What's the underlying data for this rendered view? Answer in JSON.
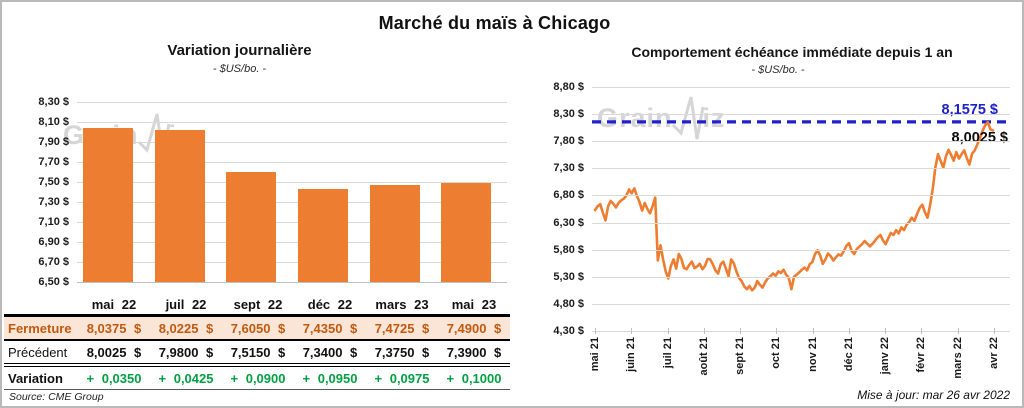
{
  "title": "Marché du maïs à Chicago",
  "watermark": {
    "part1": "Grain",
    "part2": "iz"
  },
  "source_note": "Source: CME Group",
  "updated_note": "Mise à jour: mar 26 avr 2022",
  "colors": {
    "orange": "#ED7D31",
    "peach": "#FBE5D6",
    "brown": "#C05A11",
    "green": "#00A142",
    "blue": "#2121C8",
    "grid": "#D9D9D9"
  },
  "chart_data": [
    {
      "type": "bar",
      "title": "Variation  journalière",
      "subtitle": "- $US/bo. -",
      "categories": [
        "mai 22",
        "juil 22",
        "sept 22",
        "déc 22",
        "mars 23",
        "mai 23"
      ],
      "values": [
        8.0375,
        8.0225,
        7.605,
        7.435,
        7.4725,
        7.49
      ],
      "ylim": [
        6.5,
        8.3
      ],
      "ytick_step": 0.2,
      "ytick_labels": [
        "8,30 $",
        "8,10 $",
        "7,90 $",
        "7,70 $",
        "7,50 $",
        "7,30 $",
        "7,10 $",
        "6,90 $",
        "6,70 $",
        "6,50 $"
      ],
      "bar_color": "#ED7D31",
      "grid": "horizontal"
    },
    {
      "type": "line",
      "title": "Comportement  échéance  immédiate  depuis 1 an",
      "subtitle": "- $US/bo. -",
      "x_labels": [
        "mai 21",
        "juin 21",
        "juil 21",
        "août 21",
        "sept 21",
        "oct 21",
        "nov 21",
        "déc 21",
        "janv 22",
        "févr 22",
        "mars 22",
        "avr 22"
      ],
      "ylim": [
        4.3,
        8.8
      ],
      "ytick_step": 0.5,
      "ytick_labels": [
        "8,80 $",
        "8,30 $",
        "7,80 $",
        "7,30 $",
        "6,80 $",
        "6,30 $",
        "5,80 $",
        "5,30 $",
        "4,80 $",
        "4,30 $"
      ],
      "line_color": "#ED7D31",
      "grid": "horizontal",
      "reference_line": {
        "value": 8.1575,
        "label": "8,1575 $",
        "style": "dashed",
        "color": "#2121C8"
      },
      "last_label": {
        "value": 8.0025,
        "label": "8,0025 $"
      },
      "series": [
        {
          "name": "échéance immédiate",
          "values": [
            6.53,
            6.6,
            6.64,
            6.48,
            6.34,
            6.6,
            6.7,
            6.65,
            6.58,
            6.66,
            6.71,
            6.74,
            6.8,
            6.91,
            6.84,
            6.93,
            6.79,
            6.68,
            6.52,
            6.66,
            6.55,
            6.47,
            6.6,
            6.76,
            5.6,
            5.88,
            5.62,
            5.4,
            5.27,
            5.5,
            5.62,
            5.45,
            5.72,
            5.63,
            5.46,
            5.44,
            5.52,
            5.58,
            5.46,
            5.49,
            5.54,
            5.44,
            5.5,
            5.63,
            5.62,
            5.53,
            5.42,
            5.36,
            5.53,
            5.58,
            5.45,
            5.31,
            5.62,
            5.55,
            5.4,
            5.28,
            5.22,
            5.12,
            5.07,
            5.13,
            5.05,
            5.1,
            5.22,
            5.15,
            5.1,
            5.2,
            5.27,
            5.31,
            5.36,
            5.32,
            5.4,
            5.37,
            5.43,
            5.34,
            5.28,
            5.07,
            5.3,
            5.34,
            5.38,
            5.43,
            5.47,
            5.42,
            5.53,
            5.57,
            5.71,
            5.79,
            5.69,
            5.54,
            5.62,
            5.73,
            5.68,
            5.6,
            5.66,
            5.71,
            5.69,
            5.77,
            5.87,
            5.92,
            5.78,
            5.72,
            5.81,
            5.86,
            5.9,
            5.96,
            5.91,
            5.86,
            5.91,
            5.97,
            6.03,
            6.07,
            5.97,
            5.9,
            6.01,
            6.11,
            6.07,
            6.16,
            6.1,
            6.21,
            6.16,
            6.26,
            6.31,
            6.39,
            6.33,
            6.46,
            6.57,
            6.63,
            6.49,
            6.39,
            6.63,
            6.93,
            7.32,
            7.56,
            7.44,
            7.31,
            7.52,
            7.64,
            7.55,
            7.44,
            7.6,
            7.48,
            7.56,
            7.63,
            7.49,
            7.37,
            7.57,
            7.63,
            7.74,
            7.86,
            7.99,
            8.09,
            8.15,
            8.02,
            8.0
          ]
        }
      ]
    }
  ],
  "table": {
    "columns": [
      "mai 22",
      "juil 22",
      "sept 22",
      "déc 22",
      "mars 23",
      "mai 23"
    ],
    "rows": [
      {
        "label": "Fermeture",
        "style": "fermeture",
        "values": [
          "8,0375 $",
          "8,0225 $",
          "7,6050 $",
          "7,4350 $",
          "7,4725 $",
          "7,4900 $"
        ]
      },
      {
        "label": "Précédent",
        "style": "precedent",
        "values": [
          "8,0025 $",
          "7,9800 $",
          "7,5150 $",
          "7,3400 $",
          "7,3750 $",
          "7,3900 $"
        ]
      },
      {
        "label": "Variation",
        "style": "variation",
        "values": [
          "+ 0,0350",
          "+ 0,0425",
          "+ 0,0900",
          "+ 0,0950",
          "+ 0,0975",
          "+ 0,1000"
        ]
      }
    ]
  }
}
